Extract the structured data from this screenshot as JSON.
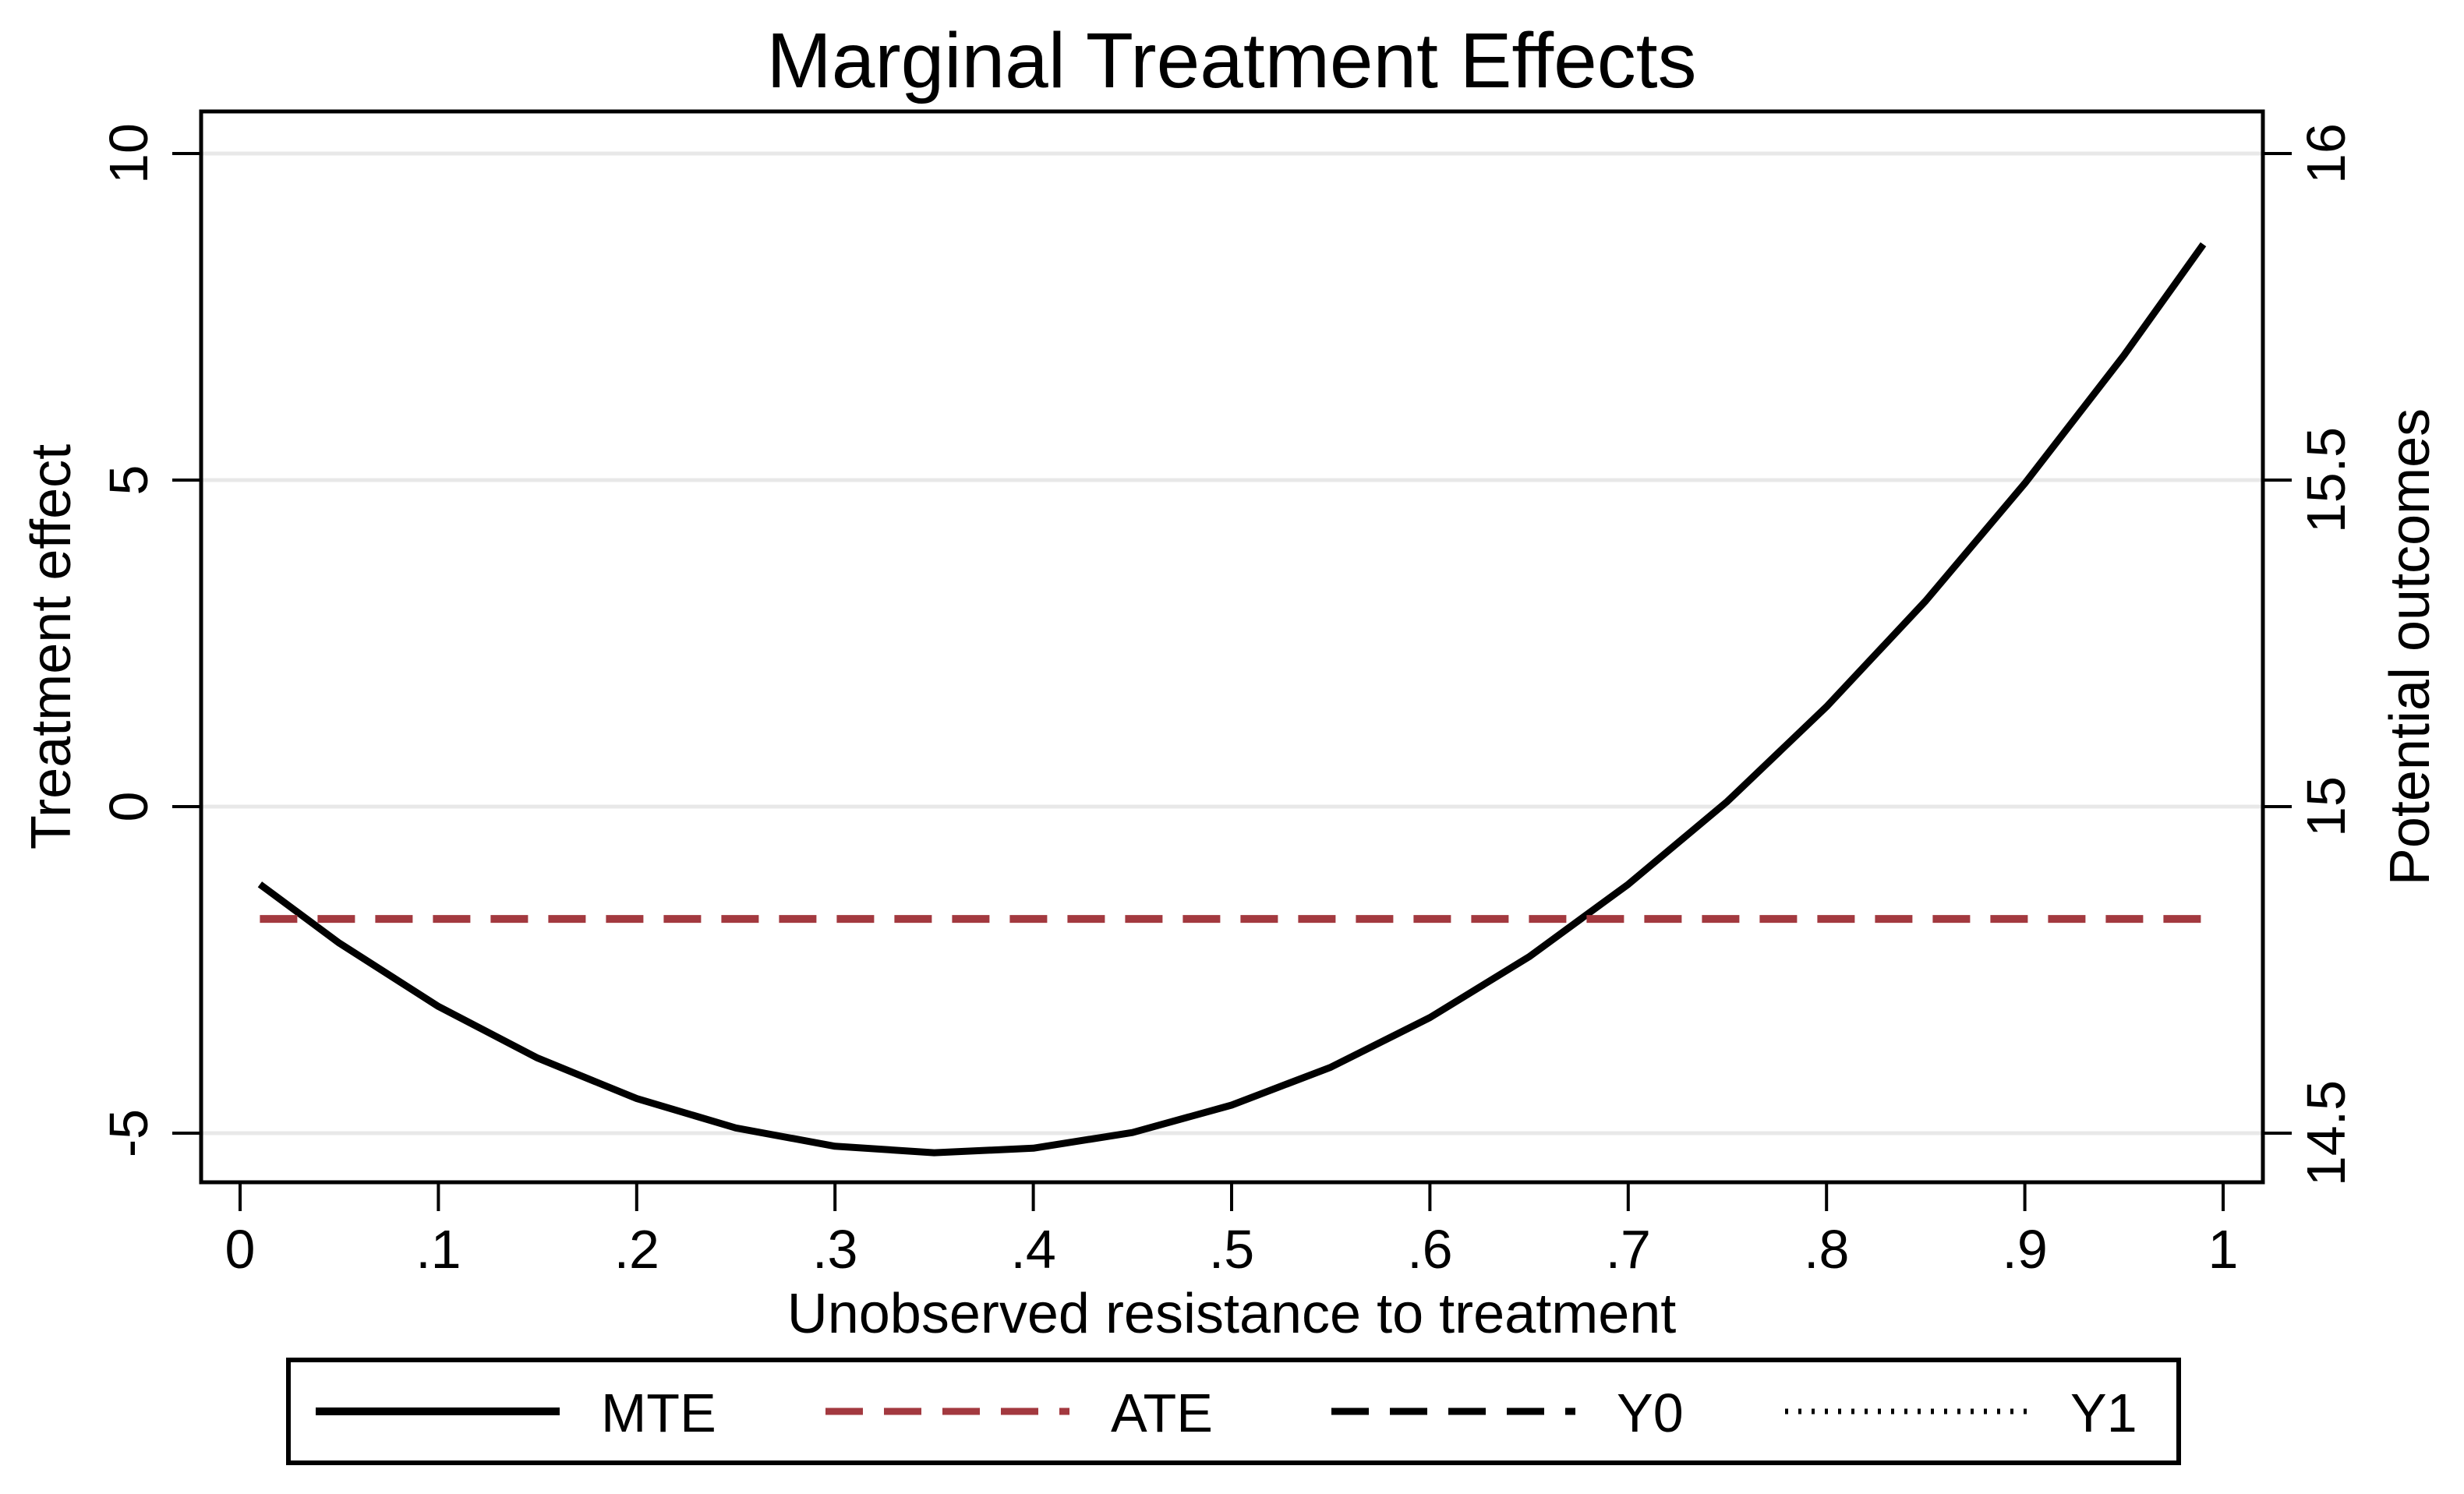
{
  "chart_data": {
    "type": "line",
    "title": "Marginal Treatment Effects",
    "xlabel": "Unobserved resistance to treatment",
    "ylabel_left": "Treatment effect",
    "ylabel_right": "Potential outcomes",
    "x_ticks": [
      "0",
      ".1",
      ".2",
      ".3",
      ".4",
      ".5",
      ".6",
      ".7",
      ".8",
      ".9",
      "1"
    ],
    "x_tick_values": [
      0,
      0.1,
      0.2,
      0.3,
      0.4,
      0.5,
      0.6,
      0.7,
      0.8,
      0.9,
      1
    ],
    "y_left_ticks": [
      "10",
      "5",
      "0",
      "-5"
    ],
    "y_left_tick_values": [
      10,
      5,
      0,
      -5
    ],
    "y_right_ticks": [
      "16",
      "15.5",
      "15",
      "14.5"
    ],
    "y_right_tick_values_on_left_scale": [
      10,
      5,
      0,
      -5
    ],
    "xlim": [
      -0.02,
      1.02
    ],
    "ylim_left": [
      -5.75,
      10.65
    ],
    "ylim_right": [
      14.425,
      16.065
    ],
    "grid": "horizontal",
    "legend_position": "bottom",
    "series": [
      {
        "name": "MTE",
        "style": "solid",
        "color": "#000000",
        "x": [
          0.01,
          0.05,
          0.1,
          0.15,
          0.2,
          0.25,
          0.3,
          0.35,
          0.4,
          0.45,
          0.5,
          0.55,
          0.6,
          0.65,
          0.7,
          0.75,
          0.8,
          0.85,
          0.9,
          0.95,
          0.99
        ],
        "y": [
          -1.19,
          -2.09,
          -3.06,
          -3.85,
          -4.47,
          -4.92,
          -5.2,
          -5.3,
          -5.23,
          -4.99,
          -4.57,
          -3.99,
          -3.23,
          -2.3,
          -1.19,
          0.08,
          1.53,
          3.15,
          4.95,
          6.91,
          8.61
        ]
      },
      {
        "name": "ATE",
        "style": "dashed",
        "color": "#a3393f",
        "x": [
          0.01,
          0.99
        ],
        "y": [
          -1.72,
          -1.72
        ]
      },
      {
        "name": "Y0",
        "style": "dashed",
        "color": "#000000",
        "visible_in_plot": false
      },
      {
        "name": "Y1",
        "style": "dotted",
        "color": "#000000",
        "visible_in_plot": false
      }
    ]
  },
  "legend": {
    "entries": [
      {
        "label": "MTE",
        "style": "solid",
        "color": "#000000"
      },
      {
        "label": "ATE",
        "style": "dashed",
        "color": "#a3393f"
      },
      {
        "label": "Y0",
        "style": "dashed",
        "color": "#000000"
      },
      {
        "label": "Y1",
        "style": "dotted",
        "color": "#000000"
      }
    ]
  },
  "colors": {
    "line": "#000000",
    "ate_line": "#a3393f",
    "gridline": "#e8e8e8",
    "background": "#ffffff",
    "border": "#000000"
  }
}
